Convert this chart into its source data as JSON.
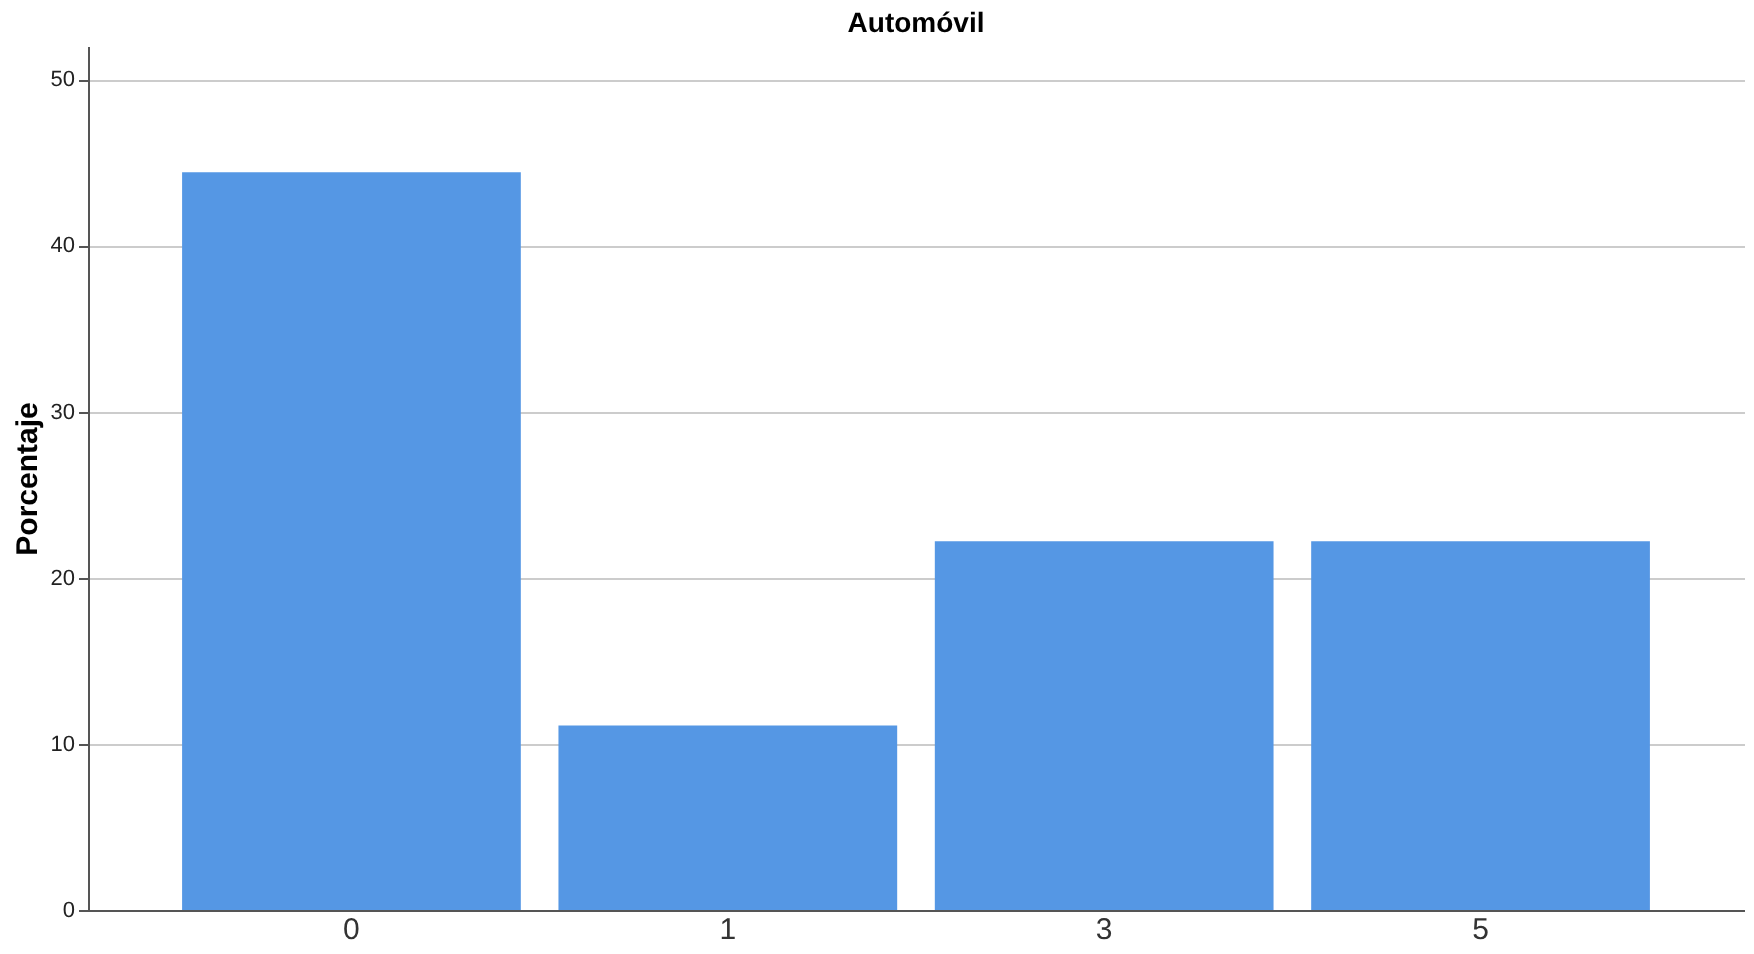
{
  "chart_data": {
    "type": "bar",
    "title": "Automóvil",
    "ylabel": "Porcentaje",
    "categories": [
      "0",
      "1",
      "3",
      "5"
    ],
    "values": [
      44.4,
      11.1,
      22.2,
      22.2
    ],
    "color": "#5597e4",
    "ylim": [
      0,
      52
    ],
    "yticks": [
      0,
      10,
      20,
      30,
      40,
      50
    ],
    "grid": "y"
  }
}
